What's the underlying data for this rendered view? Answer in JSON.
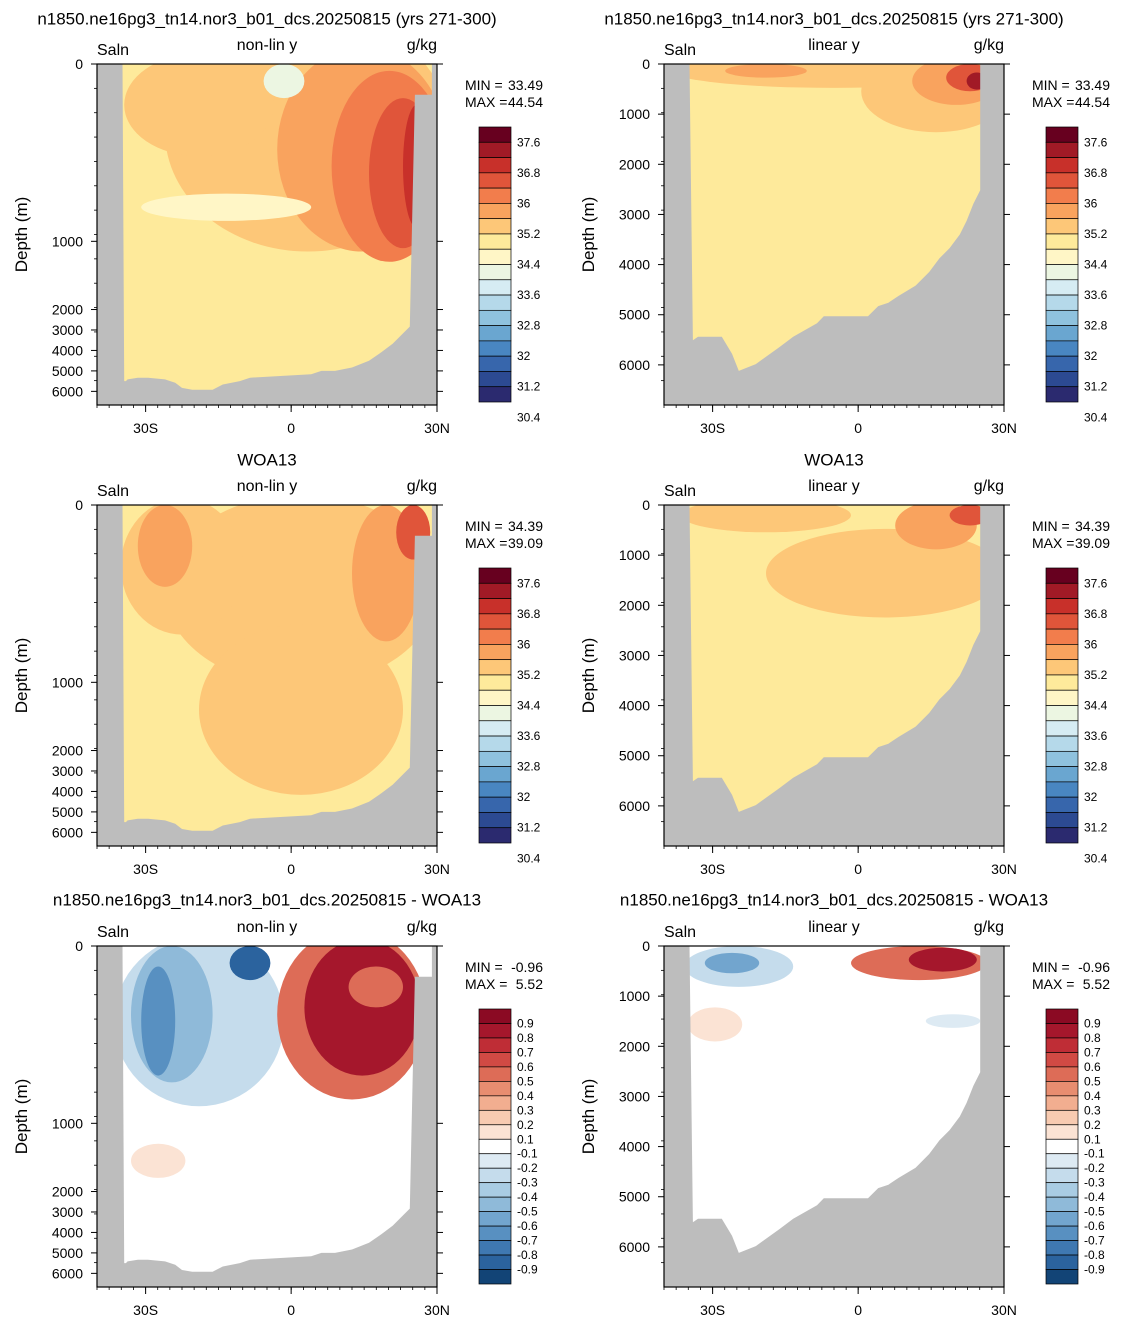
{
  "chart_data": [
    {
      "type": "heatmap",
      "title": "n1850.ne16pg3_tn14.nor3_b01_dcs.20250815 (yrs 271-300)",
      "variable": "Saln",
      "scale_label": "non-lin y",
      "units": "g/kg",
      "ylabel": "Depth (m)",
      "xticks": [
        "30S",
        "0",
        "30N"
      ],
      "yticks": [
        "0",
        "1000",
        "2000",
        "3000",
        "4000",
        "5000",
        "6000"
      ],
      "y_scale": "non-linear",
      "min_label": "MIN =",
      "min_value": "33.49",
      "max_label": "MAX =",
      "max_value": "44.54",
      "colorbar": "salinity",
      "field": "model"
    },
    {
      "type": "heatmap",
      "title": "n1850.ne16pg3_tn14.nor3_b01_dcs.20250815 (yrs 271-300)",
      "variable": "Saln",
      "scale_label": "linear y",
      "units": "g/kg",
      "ylabel": "Depth (m)",
      "xticks": [
        "30S",
        "0",
        "30N"
      ],
      "yticks": [
        "0",
        "1000",
        "2000",
        "3000",
        "4000",
        "5000",
        "6000"
      ],
      "y_scale": "linear",
      "min_label": "MIN =",
      "min_value": "33.49",
      "max_label": "MAX =",
      "max_value": "44.54",
      "colorbar": "salinity",
      "field": "model"
    },
    {
      "type": "heatmap",
      "title": "WOA13",
      "variable": "Saln",
      "scale_label": "non-lin y",
      "units": "g/kg",
      "ylabel": "Depth (m)",
      "xticks": [
        "30S",
        "0",
        "30N"
      ],
      "yticks": [
        "0",
        "1000",
        "2000",
        "3000",
        "4000",
        "5000",
        "6000"
      ],
      "y_scale": "non-linear",
      "min_label": "MIN =",
      "min_value": "34.39",
      "max_label": "MAX =",
      "max_value": "39.09",
      "colorbar": "salinity",
      "field": "obs"
    },
    {
      "type": "heatmap",
      "title": "WOA13",
      "variable": "Saln",
      "scale_label": "linear y",
      "units": "g/kg",
      "ylabel": "Depth (m)",
      "xticks": [
        "30S",
        "0",
        "30N"
      ],
      "yticks": [
        "0",
        "1000",
        "2000",
        "3000",
        "4000",
        "5000",
        "6000"
      ],
      "y_scale": "linear",
      "min_label": "MIN =",
      "min_value": "34.39",
      "max_label": "MAX =",
      "max_value": "39.09",
      "colorbar": "salinity",
      "field": "obs"
    },
    {
      "type": "heatmap",
      "title": "n1850.ne16pg3_tn14.nor3_b01_dcs.20250815 - WOA13",
      "variable": "Saln",
      "scale_label": "non-lin y",
      "units": "g/kg",
      "ylabel": "Depth (m)",
      "xticks": [
        "30S",
        "0",
        "30N"
      ],
      "yticks": [
        "0",
        "1000",
        "2000",
        "3000",
        "4000",
        "5000",
        "6000"
      ],
      "y_scale": "non-linear",
      "min_label": "MIN =",
      "min_value": "-0.96",
      "max_label": "MAX =",
      "max_value": "5.52",
      "colorbar": "difference",
      "field": "diff"
    },
    {
      "type": "heatmap",
      "title": "n1850.ne16pg3_tn14.nor3_b01_dcs.20250815 - WOA13",
      "variable": "Saln",
      "scale_label": "linear y",
      "units": "g/kg",
      "ylabel": "Depth (m)",
      "xticks": [
        "30S",
        "0",
        "30N"
      ],
      "yticks": [
        "0",
        "1000",
        "2000",
        "3000",
        "4000",
        "5000",
        "6000"
      ],
      "y_scale": "linear",
      "min_label": "MIN =",
      "min_value": "-0.96",
      "max_label": "MAX =",
      "max_value": "5.52",
      "colorbar": "difference",
      "field": "diff"
    }
  ],
  "colorbars": {
    "salinity": {
      "labels": [
        "37.6",
        "36.8",
        "36",
        "35.2",
        "34.4",
        "33.6",
        "32.8",
        "32",
        "31.2",
        "30.4"
      ],
      "colors_top_to_bottom": [
        "#67001f",
        "#a11a26",
        "#c8302a",
        "#e0553a",
        "#f27d4c",
        "#f9a35e",
        "#fdc778",
        "#feea9b",
        "#fff6c6",
        "#ecf6e2",
        "#d6ecf3",
        "#b5d9ea",
        "#8fc2de",
        "#6aa6d0",
        "#4986c1",
        "#3766ac",
        "#2c4a92",
        "#2b2a6f"
      ]
    },
    "difference": {
      "labels": [
        "0.9",
        "0.8",
        "0.7",
        "0.6",
        "0.5",
        "0.4",
        "0.3",
        "0.2",
        "0.1",
        "-0.1",
        "-0.2",
        "-0.3",
        "-0.4",
        "-0.5",
        "-0.6",
        "-0.7",
        "-0.8",
        "-0.9"
      ],
      "colors_top_to_bottom": [
        "#8b0a23",
        "#a5172c",
        "#bf2d36",
        "#d14a44",
        "#dd6c57",
        "#e88d70",
        "#f2ae90",
        "#f8cbb1",
        "#fbe3d4",
        "#ffffff",
        "#ddeaf3",
        "#c5dcec",
        "#a9cce3",
        "#8fbad9",
        "#72a5ce",
        "#5890c1",
        "#3f78b1",
        "#2b639e",
        "#124476"
      ]
    },
    "land": "#bdbdbd",
    "axis": "#000000"
  }
}
